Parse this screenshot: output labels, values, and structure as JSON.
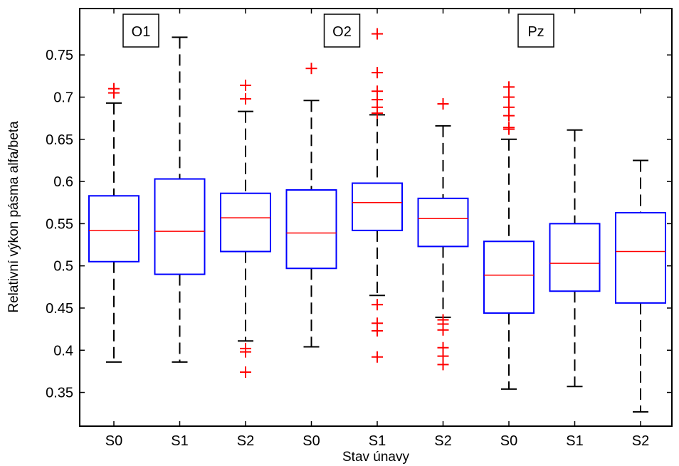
{
  "chart_data": {
    "type": "box",
    "xlabel": "Stav únavy",
    "ylabel": "Relativní výkon pásma alfa/beta",
    "ylim": [
      0.31,
      0.805
    ],
    "yticks": [
      0.35,
      0.4,
      0.45,
      0.5,
      0.55,
      0.6,
      0.65,
      0.7,
      0.75
    ],
    "ytick_labels": [
      "0.35",
      "0.4",
      "0.45",
      "0.5",
      "0.55",
      "0.6",
      "0.65",
      "0.7",
      "0.75"
    ],
    "grid": false,
    "colors": {
      "box": "#0000ff",
      "median": "#ff0000",
      "whisker": "#000000",
      "outlier": "#ff0000"
    },
    "groups": [
      {
        "label": "O1",
        "category_index": 0
      },
      {
        "label": "O2",
        "category_index": 3
      },
      {
        "label": "Pz",
        "category_index": 6
      }
    ],
    "categories": [
      "S0",
      "S1",
      "S2",
      "S0",
      "S1",
      "S2",
      "S0",
      "S1",
      "S2"
    ],
    "boxes": [
      {
        "label": "S0",
        "whisker_low": 0.386,
        "q1": 0.505,
        "median": 0.542,
        "q3": 0.583,
        "whisker_high": 0.693,
        "outliers": [
          0.705,
          0.71
        ]
      },
      {
        "label": "S1",
        "whisker_low": 0.386,
        "q1": 0.49,
        "median": 0.541,
        "q3": 0.603,
        "whisker_high": 0.771,
        "outliers": []
      },
      {
        "label": "S2",
        "whisker_low": 0.411,
        "q1": 0.517,
        "median": 0.557,
        "q3": 0.586,
        "whisker_high": 0.683,
        "outliers": [
          0.374,
          0.398,
          0.402,
          0.698,
          0.714
        ]
      },
      {
        "label": "S0",
        "whisker_low": 0.404,
        "q1": 0.497,
        "median": 0.539,
        "q3": 0.59,
        "whisker_high": 0.696,
        "outliers": [
          0.734
        ]
      },
      {
        "label": "S1",
        "whisker_low": 0.465,
        "q1": 0.542,
        "median": 0.575,
        "q3": 0.598,
        "whisker_high": 0.679,
        "outliers": [
          0.392,
          0.423,
          0.432,
          0.454,
          0.681,
          0.688,
          0.697,
          0.707,
          0.729,
          0.775
        ]
      },
      {
        "label": "S2",
        "whisker_low": 0.439,
        "q1": 0.523,
        "median": 0.556,
        "q3": 0.58,
        "whisker_high": 0.666,
        "outliers": [
          0.383,
          0.393,
          0.403,
          0.424,
          0.431,
          0.436,
          0.692
        ]
      },
      {
        "label": "S0",
        "whisker_low": 0.354,
        "q1": 0.444,
        "median": 0.489,
        "q3": 0.529,
        "whisker_high": 0.65,
        "outliers": [
          0.662,
          0.664,
          0.678,
          0.688,
          0.7,
          0.712
        ]
      },
      {
        "label": "S1",
        "whisker_low": 0.357,
        "q1": 0.47,
        "median": 0.503,
        "q3": 0.55,
        "whisker_high": 0.661,
        "outliers": []
      },
      {
        "label": "S2",
        "whisker_low": 0.327,
        "q1": 0.456,
        "median": 0.517,
        "q3": 0.563,
        "whisker_high": 0.625,
        "outliers": []
      }
    ]
  }
}
